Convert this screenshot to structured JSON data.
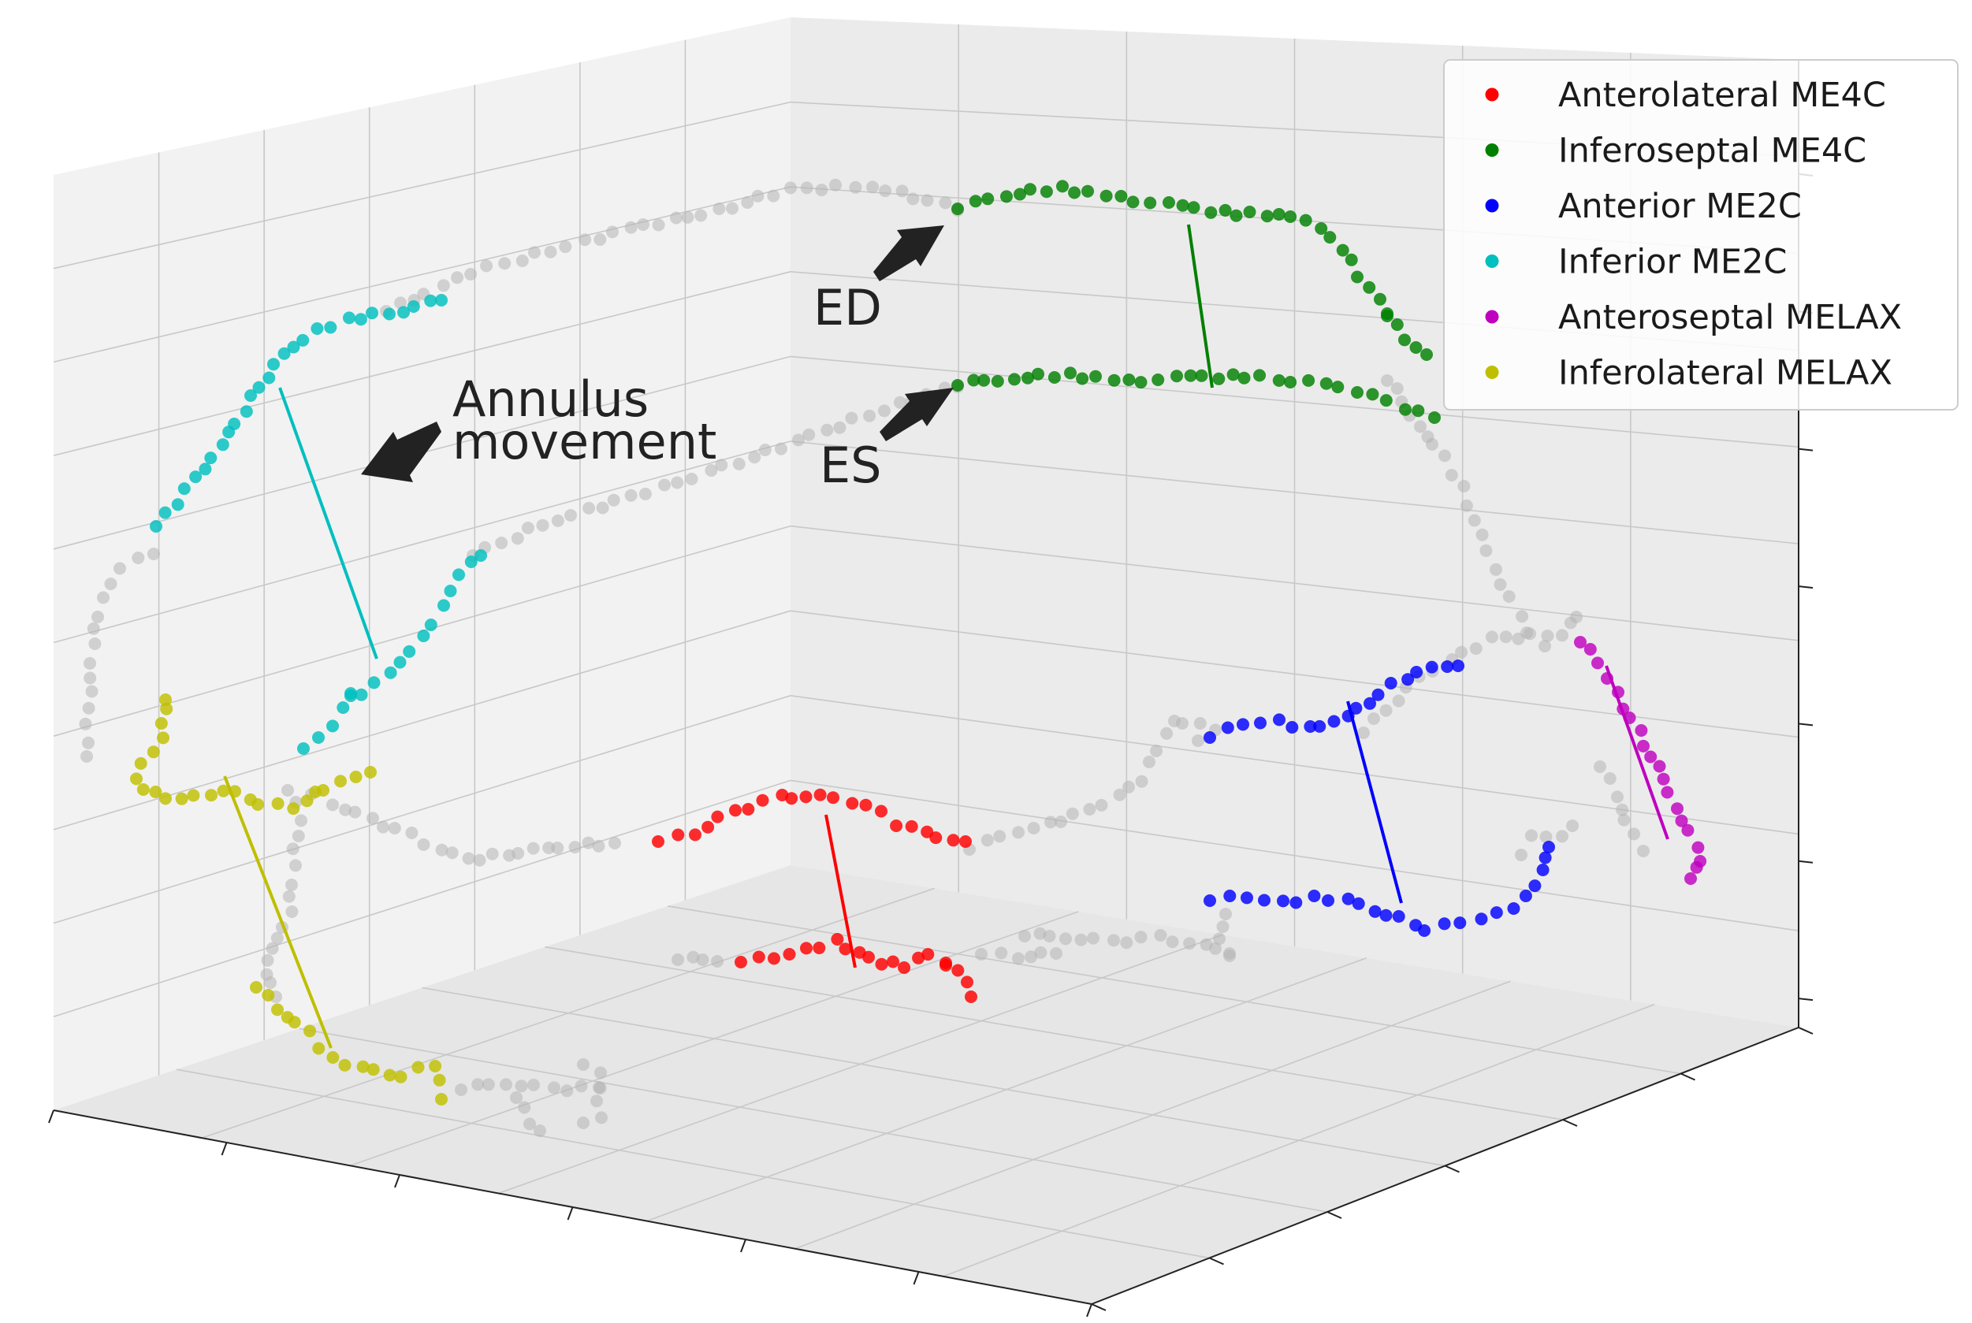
{
  "chart_data": {
    "type": "scatter",
    "projection": "3d",
    "title": "",
    "xlabel": "",
    "ylabel": "",
    "zlabel": "",
    "grid": true,
    "tick_labels_shown": false,
    "legend_position": "top-right",
    "series": [
      {
        "name": "Anterolateral ME4C",
        "color": "#ff0000"
      },
      {
        "name": "Inferoseptal ME4C",
        "color": "#008000"
      },
      {
        "name": "Anterior ME2C",
        "color": "#0000ff"
      },
      {
        "name": "Inferior ME2C",
        "color": "#00bfbf"
      },
      {
        "name": "Anteroseptal MELAX",
        "color": "#bf00bf"
      },
      {
        "name": "Inferolateral MELAX",
        "color": "#bfbf00"
      }
    ],
    "other_points_color": "#b4b4b4",
    "annotations": [
      {
        "id": "ed",
        "text": "ED"
      },
      {
        "id": "es",
        "text": "ES"
      },
      {
        "id": "annulus",
        "lines": [
          "Annulus",
          "movement"
        ]
      }
    ]
  }
}
